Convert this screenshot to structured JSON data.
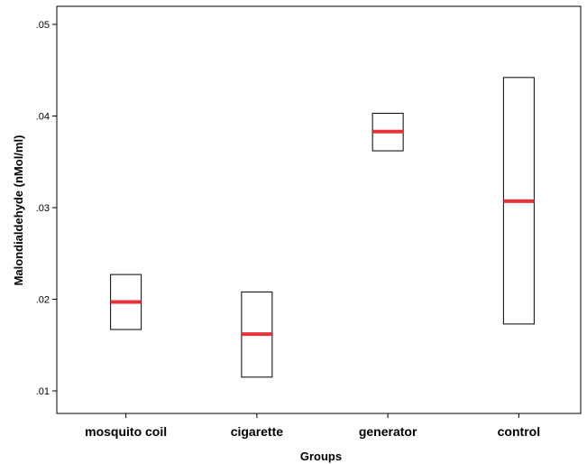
{
  "chart_data": {
    "type": "boxplot",
    "xlabel": "Groups",
    "ylabel": "Malondialdehyde (nMol/ml)",
    "ylim": [
      0.008,
      0.052
    ],
    "yticks": [
      0.01,
      0.02,
      0.03,
      0.04,
      0.05
    ],
    "ytick_labels": [
      ".01",
      ".02",
      ".03",
      ".04",
      ".05"
    ],
    "grid": false,
    "median_color": "#e8323a",
    "box_color": "#000000",
    "categories": [
      "mosquito coil",
      "cigarette",
      "generator",
      "control"
    ],
    "boxes": [
      {
        "category": "mosquito coil",
        "low": 0.0167,
        "median": 0.0197,
        "high": 0.0227
      },
      {
        "category": "cigarette",
        "low": 0.0115,
        "median": 0.0162,
        "high": 0.0208
      },
      {
        "category": "generator",
        "low": 0.0362,
        "median": 0.0383,
        "high": 0.0403
      },
      {
        "category": "control",
        "low": 0.0173,
        "median": 0.0307,
        "high": 0.0442
      }
    ]
  }
}
